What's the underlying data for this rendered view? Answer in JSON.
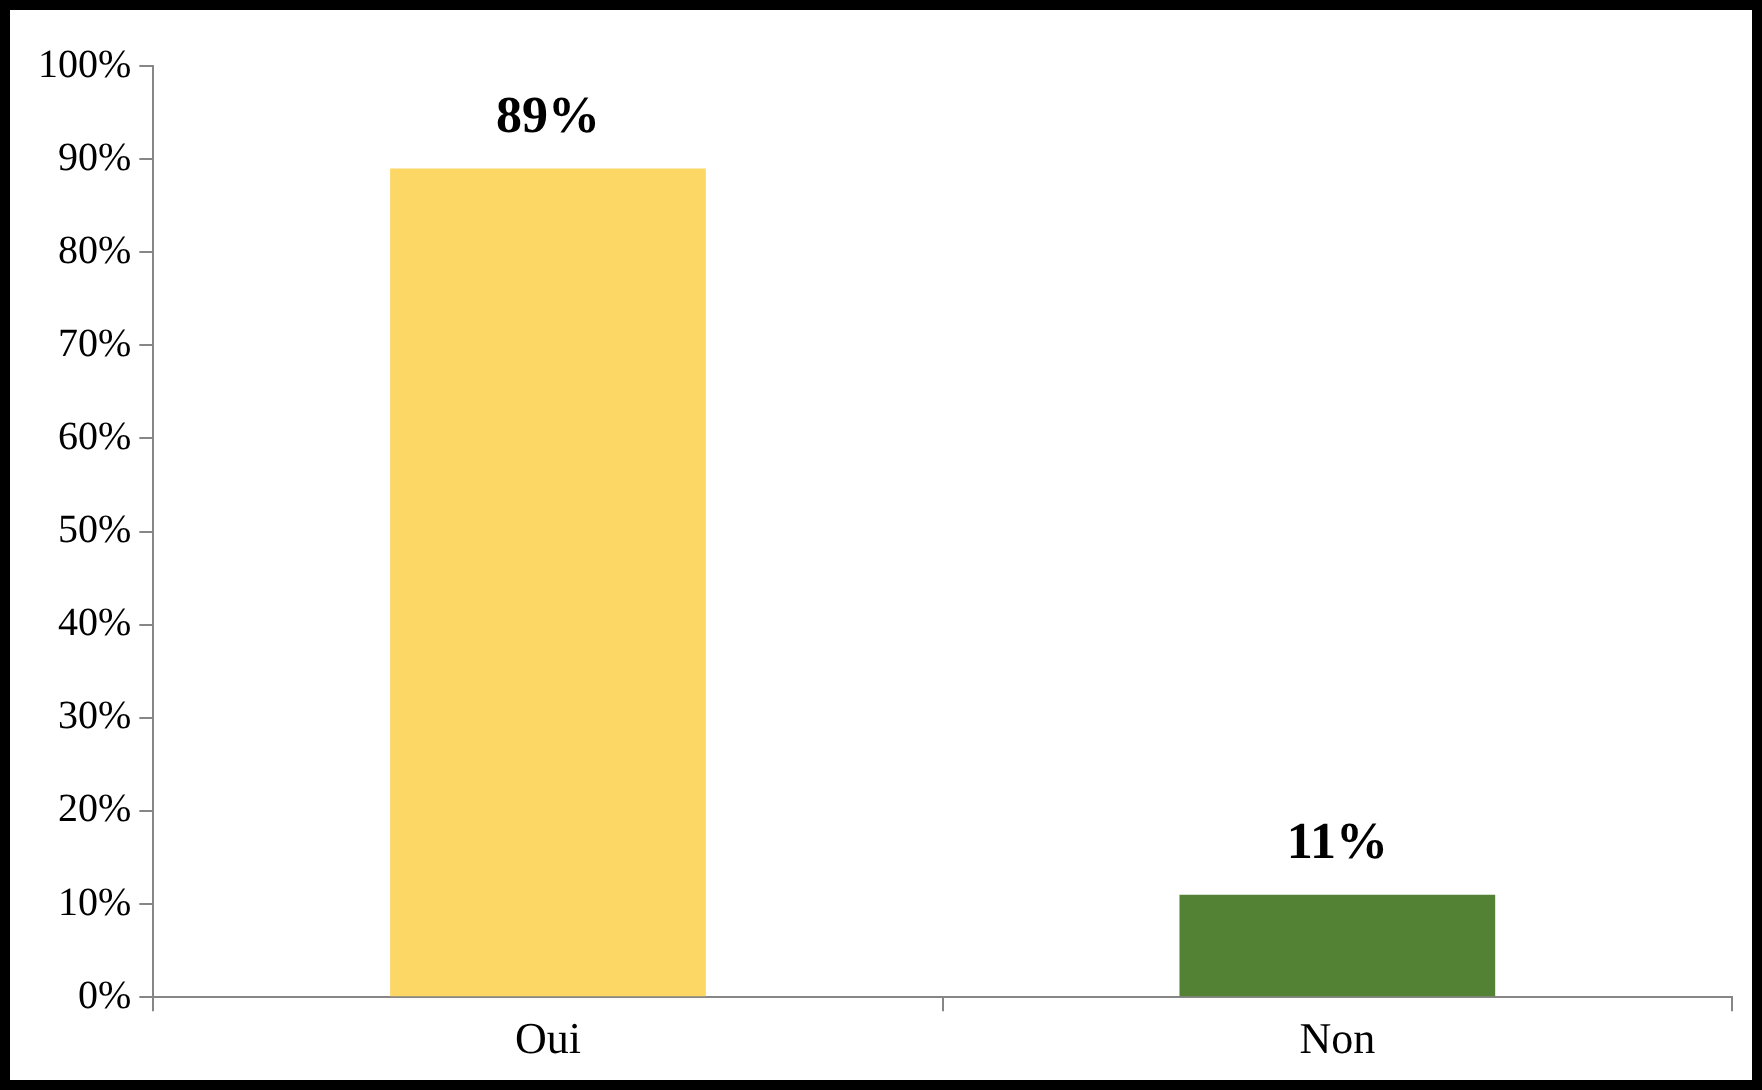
{
  "chart_data": {
    "type": "bar",
    "categories": [
      "Oui",
      "Non"
    ],
    "values": [
      89,
      11
    ],
    "colors": [
      "#fdd766",
      "#548235"
    ],
    "value_labels": [
      "89%",
      "11%"
    ],
    "ylim": [
      0,
      100
    ],
    "yticks": [
      {
        "value": 0,
        "label": "0%"
      },
      {
        "value": 10,
        "label": "10%"
      },
      {
        "value": 20,
        "label": "20%"
      },
      {
        "value": 30,
        "label": "30%"
      },
      {
        "value": 40,
        "label": "40%"
      },
      {
        "value": 50,
        "label": "50%"
      },
      {
        "value": 60,
        "label": "60%"
      },
      {
        "value": 70,
        "label": "70%"
      },
      {
        "value": 80,
        "label": "80%"
      },
      {
        "value": 90,
        "label": "90%"
      },
      {
        "value": 100,
        "label": "100%"
      }
    ],
    "grid": false,
    "legend": false
  }
}
